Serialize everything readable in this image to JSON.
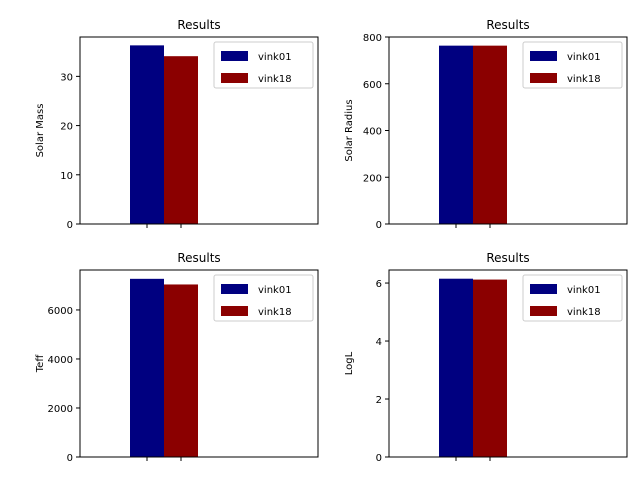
{
  "chart_data": [
    {
      "type": "bar",
      "title": "Results",
      "xlabel": "",
      "ylabel": "Solar Mass",
      "categories": [
        ""
      ],
      "series": [
        {
          "name": "vink01",
          "values": [
            36.3
          ]
        },
        {
          "name": "vink18",
          "values": [
            34.1
          ]
        }
      ],
      "ylim": [
        0,
        38
      ],
      "yticks": [
        0,
        10,
        20,
        30
      ],
      "legend": "top-right",
      "grid": false
    },
    {
      "type": "bar",
      "title": "Results",
      "xlabel": "",
      "ylabel": "Solar Radius",
      "categories": [
        ""
      ],
      "series": [
        {
          "name": "vink01",
          "values": [
            763
          ]
        },
        {
          "name": "vink18",
          "values": [
            763
          ]
        }
      ],
      "ylim": [
        0,
        800
      ],
      "yticks": [
        0,
        200,
        400,
        600,
        800
      ],
      "legend": "top-right",
      "grid": false
    },
    {
      "type": "bar",
      "title": "Results",
      "xlabel": "",
      "ylabel": "Teff",
      "categories": [
        ""
      ],
      "series": [
        {
          "name": "vink01",
          "values": [
            7270
          ]
        },
        {
          "name": "vink18",
          "values": [
            7040
          ]
        }
      ],
      "ylim": [
        0,
        7630
      ],
      "yticks": [
        0,
        2000,
        4000,
        6000
      ],
      "legend": "top-right",
      "grid": false
    },
    {
      "type": "bar",
      "title": "Results",
      "xlabel": "",
      "ylabel": "LogL",
      "categories": [
        ""
      ],
      "series": [
        {
          "name": "vink01",
          "values": [
            6.15
          ]
        },
        {
          "name": "vink18",
          "values": [
            6.12
          ]
        }
      ],
      "ylim": [
        0,
        6.45
      ],
      "yticks": [
        0,
        2,
        4,
        6
      ],
      "legend": "top-right",
      "grid": false
    }
  ],
  "colors": {
    "vink01": "#000080",
    "vink18": "#8b0000"
  }
}
